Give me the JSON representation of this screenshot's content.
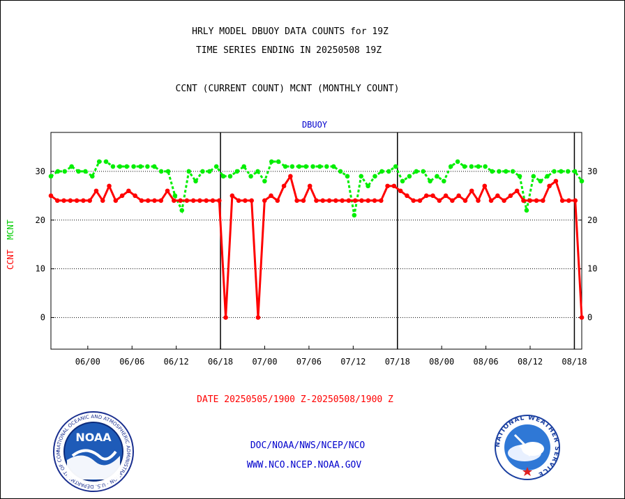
{
  "header": {
    "title_line1": "HRLY MODEL DBUOY DATA COUNTS for 19Z",
    "title_line2": "TIME SERIES ENDING IN 20250508 19Z",
    "legend_line": "CCNT (CURRENT COUNT) MCNT (MONTHLY COUNT)"
  },
  "chart_data": {
    "type": "line",
    "title": "DBUOY",
    "xlabel": "DATE 20250505/1900 Z-20250508/1900 Z",
    "ylabel_ccnt": "CCNT",
    "ylabel_mcnt": "MCNT",
    "ylim": [
      -6.5,
      38
    ],
    "yticks": [
      0,
      10,
      20,
      30
    ],
    "xticks": [
      "06/00",
      "06/06",
      "06/12",
      "06/18",
      "07/00",
      "07/06",
      "07/12",
      "07/18",
      "08/00",
      "08/06",
      "08/12",
      "08/18"
    ],
    "x_start_hour": 19,
    "x_end_hour": 91,
    "day_boundaries_hour": [
      42,
      66,
      90
    ],
    "grid": true,
    "series": [
      {
        "name": "CCNT",
        "color": "#ff0000",
        "values": [
          25,
          24,
          24,
          24,
          24,
          24,
          24,
          26,
          24,
          27,
          24,
          25,
          26,
          25,
          24,
          24,
          24,
          24,
          26,
          24,
          24,
          24,
          24,
          24,
          24,
          24,
          24,
          0,
          25,
          24,
          24,
          24,
          0,
          24,
          25,
          24,
          27,
          29,
          24,
          24,
          27,
          24,
          24,
          24,
          24,
          24,
          24,
          24,
          24,
          24,
          24,
          24,
          27,
          27,
          26,
          25,
          24,
          24,
          25,
          25,
          24,
          25,
          24,
          25,
          24,
          26,
          24,
          27,
          24,
          25,
          24,
          25,
          26,
          24,
          24,
          24,
          24,
          27,
          28,
          24,
          24,
          24,
          0
        ]
      },
      {
        "name": "MCNT",
        "color": "#00ee00",
        "values": [
          29,
          30,
          30,
          31,
          30,
          30,
          29,
          32,
          32,
          31,
          31,
          31,
          31,
          31,
          31,
          31,
          30,
          30,
          25,
          22,
          30,
          28,
          30,
          30,
          31,
          29,
          29,
          30,
          31,
          29,
          30,
          28,
          32,
          32,
          31,
          31,
          31,
          31,
          31,
          31,
          31,
          31,
          30,
          29,
          21,
          29,
          27,
          29,
          30,
          30,
          31,
          28,
          29,
          30,
          30,
          28,
          29,
          28,
          31,
          32,
          31,
          31,
          31,
          31,
          30,
          30,
          30,
          30,
          29,
          22,
          29,
          28,
          29,
          30,
          30,
          30,
          30,
          28
        ]
      }
    ]
  },
  "footer": {
    "org_line": "DOC/NOAA/NWS/NCEP/NCO",
    "url_line": "WWW.NCO.NCEP.NOAA.GOV",
    "noaa_logo_text": "NOAA",
    "noaa_ring_text": "NATIONAL OCEANIC AND ATMOSPHERIC ADMINISTRATION · U.S. DEPARTMENT OF COMMERCE",
    "nws_ring_text": "NATIONAL WEATHER SERVICE"
  }
}
